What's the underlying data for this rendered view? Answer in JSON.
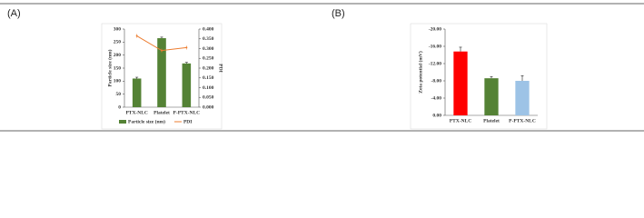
{
  "chart_data": [
    {
      "type": "bar",
      "panel_label": "(A)",
      "categories": [
        "PTX-NLC",
        "Platelet",
        "P-PTX-NLC"
      ],
      "y_label": "Particle size (nm)",
      "y2_label": "PDI",
      "series": [
        {
          "name": "Particle size (nm)",
          "type": "bar",
          "color": "#548235",
          "values": [
            110,
            265,
            168
          ],
          "errors": [
            5,
            4,
            4
          ]
        },
        {
          "name": "PDI",
          "type": "line",
          "axis": "y2",
          "color": "#ED7D31",
          "values": [
            0.365,
            0.29,
            0.305
          ],
          "errors": [
            0.01,
            0.01,
            0.01
          ]
        }
      ],
      "ylim": [
        0,
        300
      ],
      "yticks": [
        0,
        50,
        100,
        150,
        200,
        250,
        300
      ],
      "y2lim": [
        0,
        0.4
      ],
      "y2ticks": [
        {
          "value": 0,
          "label": "0.000"
        },
        {
          "value": 0.05,
          "label": "0.050"
        },
        {
          "value": 0.1,
          "label": "0.100"
        },
        {
          "value": 0.15,
          "label": "0.150"
        },
        {
          "value": 0.2,
          "label": "0.200"
        },
        {
          "value": 0.25,
          "label": "0.250"
        },
        {
          "value": 0.3,
          "label": "0.300"
        },
        {
          "value": 0.35,
          "label": "0.350"
        },
        {
          "value": 0.4,
          "label": "0.400"
        }
      ],
      "legend": "bottom"
    },
    {
      "type": "bar",
      "panel_label": "(B)",
      "categories": [
        "PTX-NLC",
        "Platelet",
        "P-PTX-NLC"
      ],
      "y_label": "Zeta potential (mV)",
      "values": [
        -14.8,
        -8.6,
        -8.0
      ],
      "errors": [
        1.0,
        0.4,
        1.2
      ],
      "colors": [
        "#FF0000",
        "#548235",
        "#9DC3E6"
      ],
      "ylim": [
        0,
        -20
      ],
      "yticks": [
        {
          "value": -20,
          "label": "-20.00"
        },
        {
          "value": -16,
          "label": "-16.00"
        },
        {
          "value": -12,
          "label": "-12.00"
        },
        {
          "value": -8,
          "label": "-8.00"
        },
        {
          "value": -4,
          "label": "-4.00"
        },
        {
          "value": 0,
          "label": "0.00"
        }
      ]
    }
  ]
}
